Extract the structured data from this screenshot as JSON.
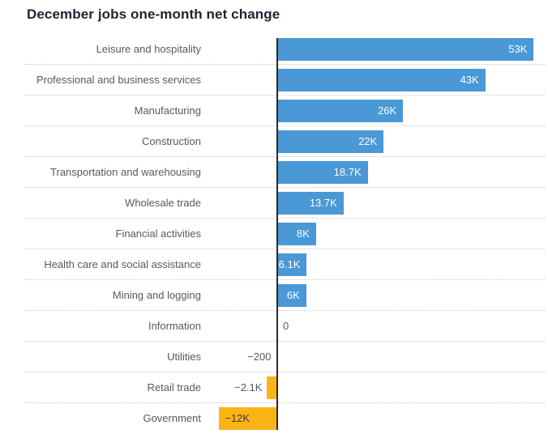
{
  "page": {
    "background": "#ffffff"
  },
  "chart_data": {
    "type": "bar",
    "orientation": "horizontal",
    "title": "December jobs one-month net change",
    "unit": "jobs, K = thousand",
    "categories": [
      "Leisure and hospitality",
      "Professional and business services",
      "Manufacturing",
      "Construction",
      "Transportation and warehousing",
      "Wholesale trade",
      "Financial activities",
      "Health care and social assistance",
      "Mining and logging",
      "Information",
      "Utilities",
      "Retail trade",
      "Government"
    ],
    "values_thousands": [
      53,
      43,
      26,
      22,
      18.7,
      13.7,
      8,
      6.1,
      6,
      0,
      -0.2,
      -2.1,
      -12
    ],
    "value_labels": [
      "53K",
      "43K",
      "26K",
      "22K",
      "18.7K",
      "13.7K",
      "8K",
      "6.1K",
      "6K",
      "0",
      "−200",
      "−2.1K",
      "−12K"
    ],
    "label_placements": [
      "inside-end",
      "inside-end",
      "inside-end",
      "inside-end",
      "inside-end",
      "inside-end",
      "inside-end",
      "inside-end",
      "inside-end",
      "outside-zero",
      "outside-start",
      "outside-start",
      "inside-start"
    ],
    "xlim_thousands": [
      -12,
      53
    ],
    "grid": "dotted row separators, no vertical gridlines",
    "legend": "none",
    "colors": {
      "positive_bar": "#4a98d5",
      "negative_bar": "#fcb415",
      "value_text_inside_positive": "#ffffff",
      "value_text_inside_negative": "#3f3f3f",
      "value_text_outside": "#545a61",
      "category_text": "#545a61",
      "title_text": "#1b2430",
      "axis_line": "#2b2b2b",
      "separator_line": "#c9c9c9"
    }
  }
}
